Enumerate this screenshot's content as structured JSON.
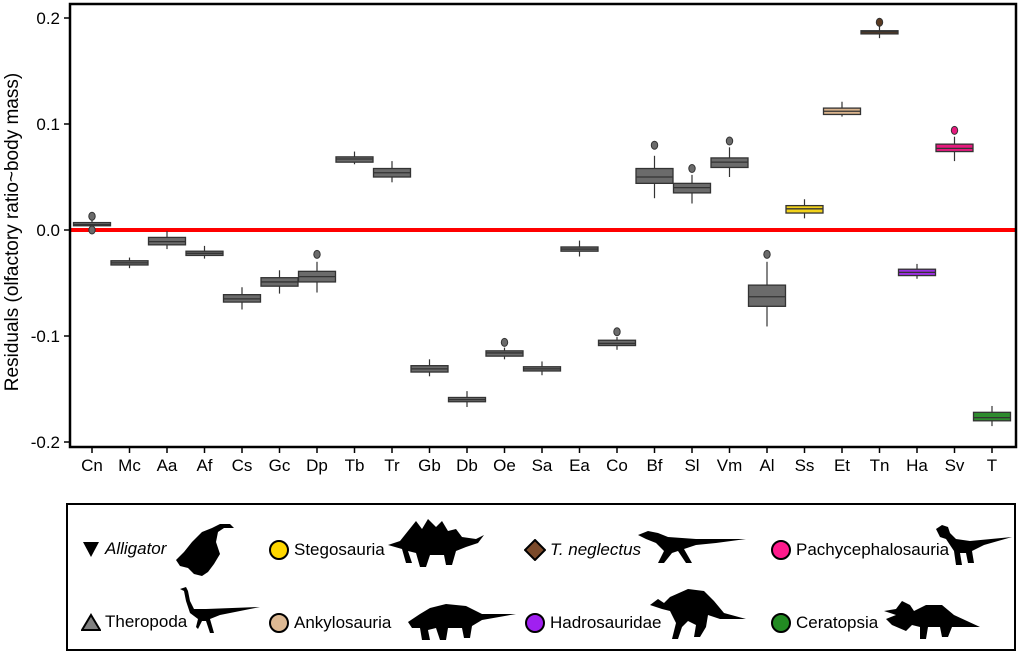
{
  "chart_data": {
    "type": "box",
    "title": "",
    "xlabel": "",
    "ylabel": "Residuals (olfactory ratio~body mass)",
    "ylim": [
      -0.205,
      0.21
    ],
    "yticks": [
      0.2,
      0.1,
      0.0,
      -0.1,
      -0.2
    ],
    "ytick_labels": [
      "0.2",
      "0.1",
      "0.0",
      "-0.1",
      "-0.2"
    ],
    "reference_line": {
      "y": 0.0,
      "color": "#ff0000"
    },
    "grid": false,
    "categories": [
      "Cn",
      "Mc",
      "Aa",
      "Af",
      "Cs",
      "Gc",
      "Dp",
      "Tb",
      "Tr",
      "Gb",
      "Db",
      "Oe",
      "Sa",
      "Ea",
      "Co",
      "Bf",
      "Sl",
      "Vm",
      "Al",
      "Ss",
      "Et",
      "Tn",
      "Ha",
      "Sv",
      "T"
    ],
    "boxes": [
      {
        "cat": "Cn",
        "q1": 0.004,
        "median": 0.005,
        "q3": 0.007,
        "lo": 0.001,
        "hi": 0.009,
        "outliers": [
          0.013,
          0.0
        ],
        "color": "#6b6b6b"
      },
      {
        "cat": "Mc",
        "q1": -0.033,
        "median": -0.031,
        "q3": -0.029,
        "lo": -0.036,
        "hi": -0.026,
        "outliers": [],
        "color": "#6b6b6b"
      },
      {
        "cat": "Aa",
        "q1": -0.014,
        "median": -0.011,
        "q3": -0.007,
        "lo": -0.018,
        "hi": -0.001,
        "outliers": [],
        "color": "#6b6b6b"
      },
      {
        "cat": "Af",
        "q1": -0.024,
        "median": -0.022,
        "q3": -0.02,
        "lo": -0.027,
        "hi": -0.015,
        "outliers": [],
        "color": "#6b6b6b"
      },
      {
        "cat": "Cs",
        "q1": -0.068,
        "median": -0.065,
        "q3": -0.061,
        "lo": -0.075,
        "hi": -0.054,
        "outliers": [],
        "color": "#6b6b6b"
      },
      {
        "cat": "Gc",
        "q1": -0.053,
        "median": -0.049,
        "q3": -0.045,
        "lo": -0.06,
        "hi": -0.038,
        "outliers": [],
        "color": "#6b6b6b"
      },
      {
        "cat": "Dp",
        "q1": -0.049,
        "median": -0.044,
        "q3": -0.039,
        "lo": -0.059,
        "hi": -0.03,
        "outliers": [
          -0.023
        ],
        "color": "#6b6b6b"
      },
      {
        "cat": "Tb",
        "q1": 0.064,
        "median": 0.067,
        "q3": 0.069,
        "lo": 0.062,
        "hi": 0.074,
        "outliers": [],
        "color": "#6b6b6b"
      },
      {
        "cat": "Tr",
        "q1": 0.05,
        "median": 0.054,
        "q3": 0.058,
        "lo": 0.045,
        "hi": 0.065,
        "outliers": [],
        "color": "#6b6b6b"
      },
      {
        "cat": "Gb",
        "q1": -0.134,
        "median": -0.131,
        "q3": -0.128,
        "lo": -0.138,
        "hi": -0.122,
        "outliers": [],
        "color": "#6b6b6b"
      },
      {
        "cat": "Db",
        "q1": -0.162,
        "median": -0.16,
        "q3": -0.158,
        "lo": -0.167,
        "hi": -0.152,
        "outliers": [],
        "color": "#6b6b6b"
      },
      {
        "cat": "Oe",
        "q1": -0.119,
        "median": -0.116,
        "q3": -0.114,
        "lo": -0.122,
        "hi": -0.111,
        "outliers": [
          -0.106
        ],
        "color": "#6b6b6b"
      },
      {
        "cat": "Sa",
        "q1": -0.133,
        "median": -0.131,
        "q3": -0.129,
        "lo": -0.137,
        "hi": -0.124,
        "outliers": [],
        "color": "#6b6b6b"
      },
      {
        "cat": "Ea",
        "q1": -0.02,
        "median": -0.018,
        "q3": -0.016,
        "lo": -0.025,
        "hi": -0.01,
        "outliers": [],
        "color": "#6b6b6b"
      },
      {
        "cat": "Co",
        "q1": -0.109,
        "median": -0.107,
        "q3": -0.104,
        "lo": -0.113,
        "hi": -0.101,
        "outliers": [
          -0.096
        ],
        "color": "#6b6b6b"
      },
      {
        "cat": "Bf",
        "q1": 0.044,
        "median": 0.05,
        "q3": 0.058,
        "lo": 0.03,
        "hi": 0.07,
        "outliers": [
          0.08
        ],
        "color": "#6b6b6b"
      },
      {
        "cat": "Sl",
        "q1": 0.035,
        "median": 0.04,
        "q3": 0.044,
        "lo": 0.025,
        "hi": 0.052,
        "outliers": [
          0.058
        ],
        "color": "#6b6b6b"
      },
      {
        "cat": "Vm",
        "q1": 0.059,
        "median": 0.064,
        "q3": 0.068,
        "lo": 0.05,
        "hi": 0.078,
        "outliers": [
          0.084
        ],
        "color": "#6b6b6b"
      },
      {
        "cat": "Al",
        "q1": -0.072,
        "median": -0.063,
        "q3": -0.052,
        "lo": -0.091,
        "hi": -0.03,
        "outliers": [
          -0.023
        ],
        "color": "#6b6b6b"
      },
      {
        "cat": "Ss",
        "q1": 0.016,
        "median": 0.02,
        "q3": 0.023,
        "lo": 0.011,
        "hi": 0.029,
        "outliers": [],
        "color": "#f2d21b"
      },
      {
        "cat": "Et",
        "q1": 0.109,
        "median": 0.112,
        "q3": 0.115,
        "lo": 0.107,
        "hi": 0.121,
        "outliers": [],
        "color": "#d9b38c"
      },
      {
        "cat": "Tn",
        "q1": 0.185,
        "median": 0.187,
        "q3": 0.188,
        "lo": 0.181,
        "hi": 0.193,
        "outliers": [
          0.196
        ],
        "color": "#5a3a22"
      },
      {
        "cat": "Ha",
        "q1": -0.043,
        "median": -0.04,
        "q3": -0.037,
        "lo": -0.046,
        "hi": -0.032,
        "outliers": [],
        "color": "#9b30e0"
      },
      {
        "cat": "Sv",
        "q1": 0.074,
        "median": 0.077,
        "q3": 0.081,
        "lo": 0.065,
        "hi": 0.088,
        "outliers": [
          0.094
        ],
        "color": "#e6197e"
      },
      {
        "cat": "T",
        "q1": -0.18,
        "median": -0.177,
        "q3": -0.172,
        "lo": -0.185,
        "hi": -0.166,
        "outliers": [],
        "color": "#2e8b2e"
      }
    ],
    "legend": {
      "placement": "bottom",
      "entries": [
        {
          "label": "Alligator",
          "marker": "triangle-down",
          "color": "#000000",
          "italic": true,
          "silhouette": "alligator-silhouette"
        },
        {
          "label": "Stegosauria",
          "marker": "circle",
          "color": "#ffd700",
          "italic": false,
          "silhouette": "stegosaurus-silhouette"
        },
        {
          "label": "T. neglectus",
          "marker": "diamond",
          "color": "#7b4a2a",
          "italic": true,
          "silhouette": "theropod-silhouette"
        },
        {
          "label": "Pachycephalosauria",
          "marker": "circle",
          "color": "#ff1a8c",
          "italic": false,
          "silhouette": "pachycephalosaur-silhouette"
        },
        {
          "label": "Theropoda",
          "marker": "triangle-up",
          "color": "#808080",
          "italic": false,
          "silhouette": "ornithomimid-silhouette"
        },
        {
          "label": "Ankylosauria",
          "marker": "circle",
          "color": "#ddb993",
          "italic": false,
          "silhouette": "ankylosaur-silhouette"
        },
        {
          "label": "Hadrosauridae",
          "marker": "circle",
          "color": "#a020f0",
          "italic": false,
          "silhouette": "hadrosaur-silhouette"
        },
        {
          "label": "Ceratopsia",
          "marker": "circle",
          "color": "#228b22",
          "italic": false,
          "silhouette": "ceratopsian-silhouette"
        }
      ]
    }
  }
}
